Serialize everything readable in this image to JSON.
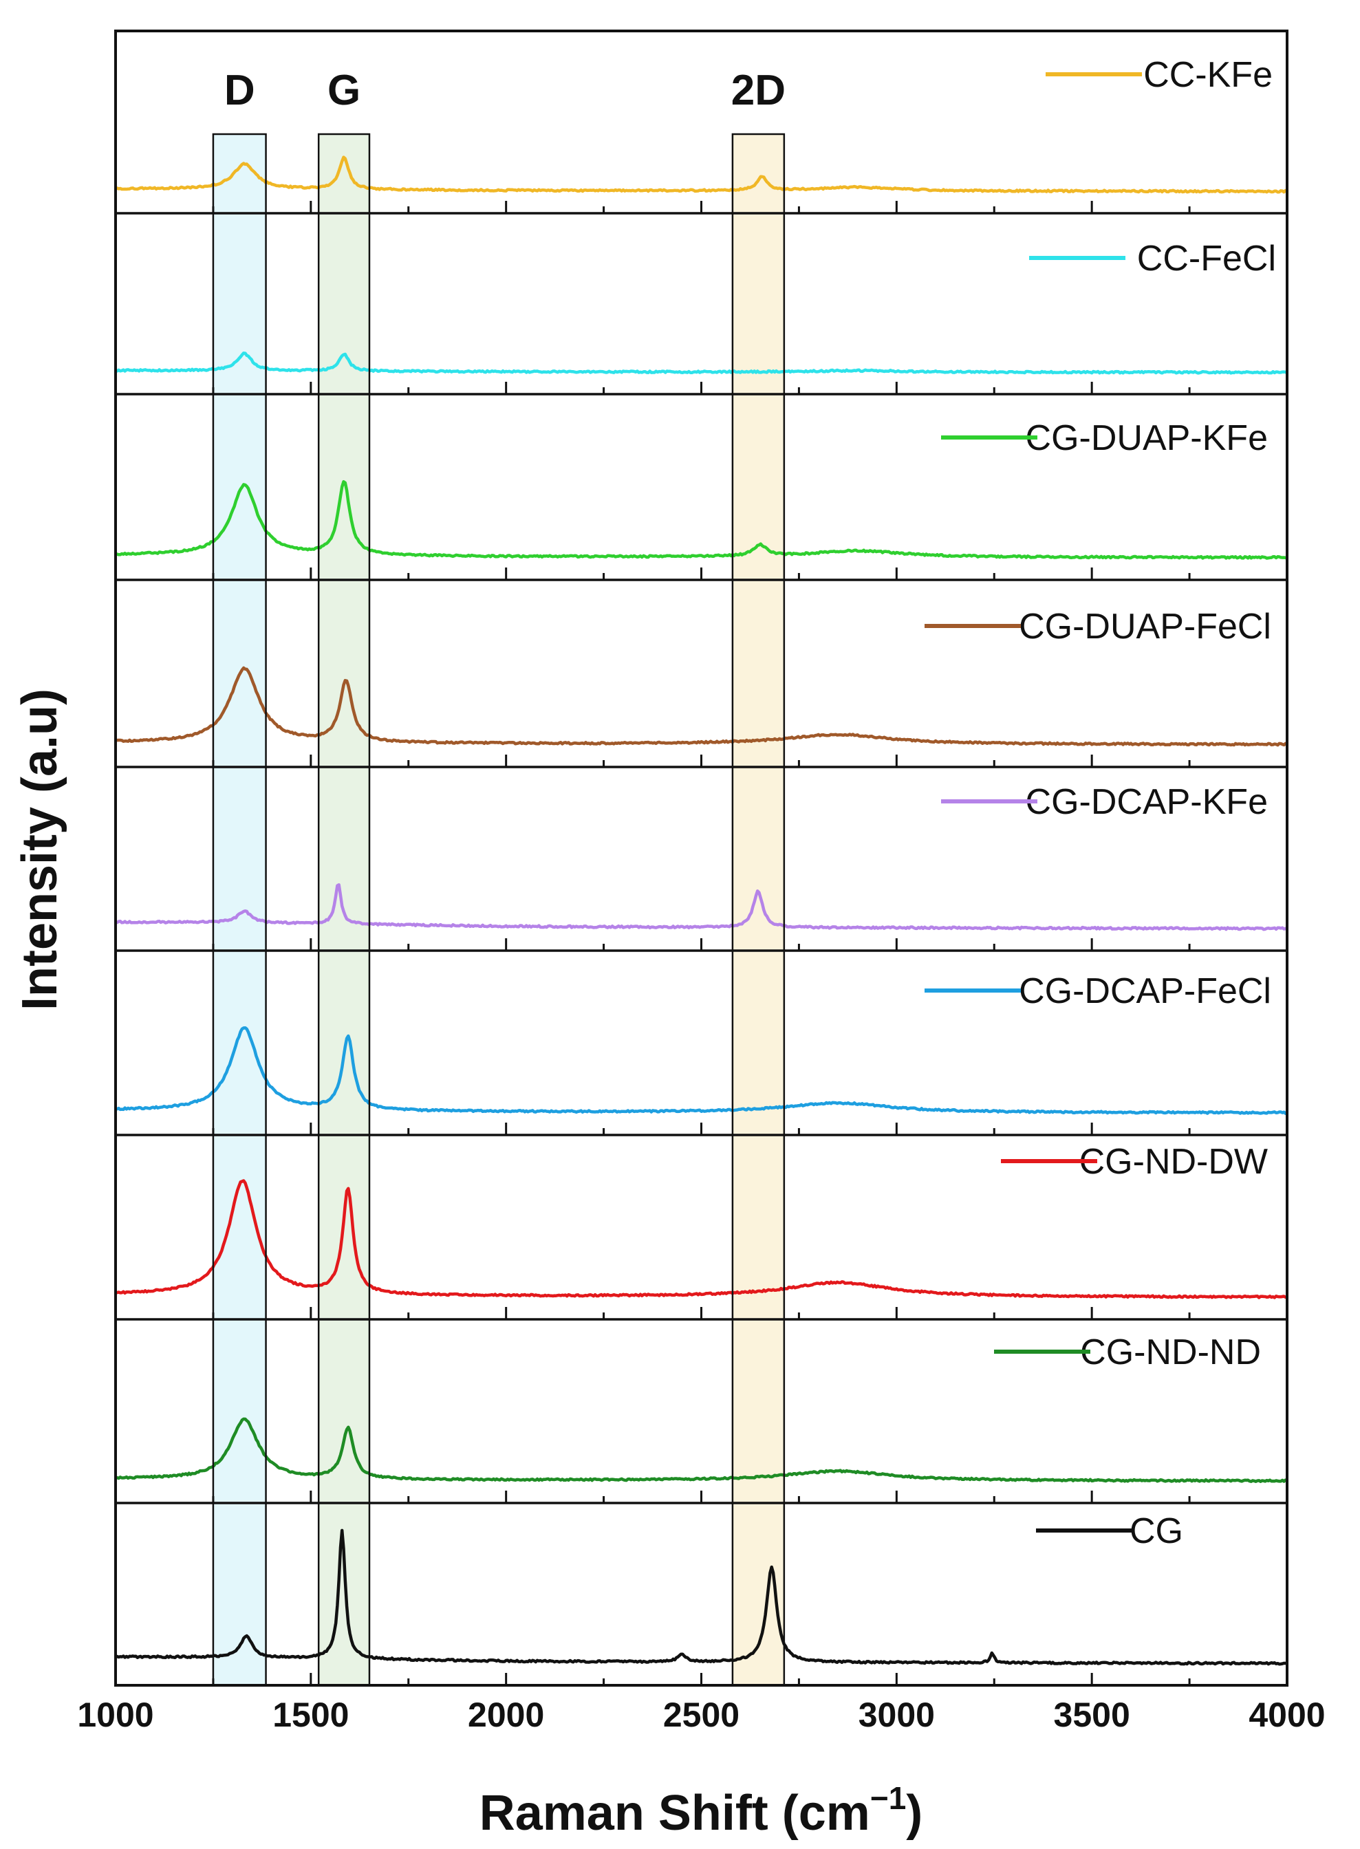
{
  "chart_data": {
    "type": "line",
    "layout": "stacked-panels",
    "xlabel": "Raman Shift (cm",
    "xlabel_sup": "−1",
    "xlabel_close": ")",
    "ylabel": "Intensity (a.u)",
    "xlim": [
      1000,
      4000
    ],
    "x_ticks": [
      1000,
      1500,
      2000,
      2500,
      3000,
      3500,
      4000
    ],
    "x_tick_labels": [
      "1000",
      "1500",
      "2000",
      "2500",
      "3000",
      "3500",
      "4000"
    ],
    "y_ticks": "none",
    "bands": [
      {
        "label": "D",
        "range": [
          1250,
          1385
        ],
        "color": "#e3f7fb"
      },
      {
        "label": "G",
        "range": [
          1520,
          1650
        ],
        "color": "#e8f3e4"
      },
      {
        "label": "2D",
        "range": [
          2580,
          2712
        ],
        "color": "#fbf3dc"
      }
    ],
    "series": [
      {
        "name": "CC-KFe",
        "color": "#f0b726",
        "baseline": [
          0.2,
          0.05
        ],
        "peaks": [
          [
            1330,
            0.8,
            70
          ],
          [
            1585,
            1.0,
            30
          ],
          [
            2655,
            0.45,
            30
          ],
          [
            2900,
            0.12,
            250
          ]
        ]
      },
      {
        "name": "CC-FeCl",
        "color": "#2ee2ea",
        "baseline": [
          0.12,
          0.04
        ],
        "peaks": [
          [
            1330,
            0.55,
            45
          ],
          [
            1585,
            0.55,
            30
          ],
          [
            2900,
            0.05,
            300
          ]
        ]
      },
      {
        "name": "CG-DUAP-KFe",
        "color": "#2fcf2f",
        "baseline": [
          0.35,
          0.05
        ],
        "peaks": [
          [
            1330,
            2.2,
            80
          ],
          [
            1585,
            2.3,
            35
          ],
          [
            2650,
            0.35,
            40
          ],
          [
            2900,
            0.2,
            280
          ]
        ]
      },
      {
        "name": "CG-DUAP-FeCl",
        "color": "#a0592a",
        "baseline": [
          0.3,
          0.04
        ],
        "peaks": [
          [
            1330,
            2.3,
            90
          ],
          [
            1590,
            1.9,
            38
          ],
          [
            2850,
            0.3,
            320
          ]
        ]
      },
      {
        "name": "CG-DCAP-KFe",
        "color": "#b583e8",
        "baseline": [
          0.12,
          0.12
        ],
        "peaks": [
          [
            1330,
            0.35,
            40
          ],
          [
            1570,
            1.2,
            18
          ],
          [
            2645,
            1.05,
            30
          ]
        ]
      },
      {
        "name": "CG-DCAP-FeCl",
        "color": "#1e9fe0",
        "baseline": [
          0.3,
          0.05
        ],
        "peaks": [
          [
            1330,
            2.6,
            85
          ],
          [
            1595,
            2.3,
            35
          ],
          [
            2850,
            0.3,
            320
          ]
        ]
      },
      {
        "name": "CG-ND-DW",
        "color": "#e3191c",
        "baseline": [
          0.3,
          0.05
        ],
        "peaks": [
          [
            1325,
            3.6,
            85
          ],
          [
            1595,
            3.3,
            32
          ],
          [
            2850,
            0.45,
            320
          ]
        ]
      },
      {
        "name": "CG-ND-ND",
        "color": "#1f8c25",
        "baseline": [
          0.25,
          0.04
        ],
        "peaks": [
          [
            1330,
            1.9,
            85
          ],
          [
            1595,
            1.6,
            35
          ],
          [
            2850,
            0.3,
            320
          ]
        ]
      },
      {
        "name": "CG",
        "color": "#111111",
        "baseline": [
          0.12,
          0.12
        ],
        "peaks": [
          [
            1335,
            0.65,
            35
          ],
          [
            1580,
            3.8,
            20
          ],
          [
            2680,
            2.8,
            32
          ],
          [
            2450,
            0.22,
            25
          ],
          [
            3245,
            0.3,
            12
          ]
        ]
      }
    ]
  }
}
